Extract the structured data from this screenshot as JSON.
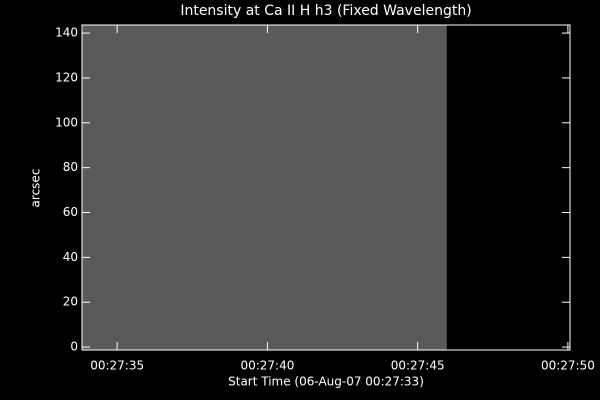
{
  "chart_data": {
    "type": "image",
    "title": "Intensity at Ca II H h3 (Fixed Wavelength)",
    "x_label": "Start Time (06-Aug-07 00:27:33)",
    "y_label": "arcsec",
    "image_x": [
      0.83,
      12.97
    ],
    "image_y": [
      -1.3,
      143.6
    ],
    "color": "#5a5a5a",
    "xlim": [
      0.83,
      17.07
    ],
    "ylim": [
      -1.3,
      143.6
    ],
    "xticks": [
      {
        "value": 2,
        "label": "00:27:35"
      },
      {
        "value": 7,
        "label": "00:27:40"
      },
      {
        "value": 12,
        "label": "00:27:45"
      },
      {
        "value": 17,
        "label": "00:27:50"
      }
    ],
    "yticks": [
      0,
      20,
      40,
      60,
      80,
      100,
      120,
      140
    ]
  }
}
